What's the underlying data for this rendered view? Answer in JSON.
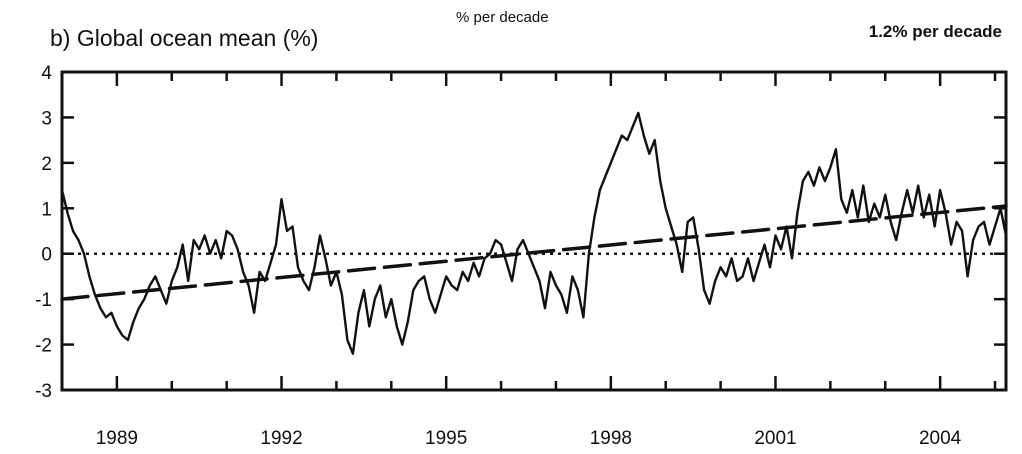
{
  "chart_data": {
    "type": "line",
    "title": "b) Global ocean mean (%)",
    "subtitle": "% per decade",
    "annotation": "1.2% per decade",
    "xlabel": "",
    "ylabel": "",
    "xlim": [
      1988,
      2005.2
    ],
    "ylim": [
      -3,
      4
    ],
    "x_ticks": [
      1989,
      1992,
      1995,
      1998,
      2001,
      2004
    ],
    "x_tick_labels": [
      "1989",
      "1992",
      "1995",
      "1998",
      "2001",
      "2004"
    ],
    "y_ticks": [
      -3,
      -2,
      -1,
      0,
      1,
      2,
      3,
      4
    ],
    "y_tick_labels": [
      "-3",
      "-2",
      "-1",
      "0",
      "1",
      "2",
      "3",
      "4"
    ],
    "grid": false,
    "zero_line": "dotted",
    "series": [
      {
        "style": "solid",
        "color": "#111111",
        "points": [
          [
            1988.0,
            1.4
          ],
          [
            1988.1,
            0.9
          ],
          [
            1988.2,
            0.5
          ],
          [
            1988.3,
            0.3
          ],
          [
            1988.4,
            0.0
          ],
          [
            1988.5,
            -0.5
          ],
          [
            1988.6,
            -0.9
          ],
          [
            1988.7,
            -1.2
          ],
          [
            1988.8,
            -1.4
          ],
          [
            1988.9,
            -1.3
          ],
          [
            1989.0,
            -1.6
          ],
          [
            1989.1,
            -1.8
          ],
          [
            1989.2,
            -1.9
          ],
          [
            1989.3,
            -1.5
          ],
          [
            1989.4,
            -1.2
          ],
          [
            1989.5,
            -1.0
          ],
          [
            1989.6,
            -0.7
          ],
          [
            1989.7,
            -0.5
          ],
          [
            1989.8,
            -0.8
          ],
          [
            1989.9,
            -1.1
          ],
          [
            1990.0,
            -0.6
          ],
          [
            1990.1,
            -0.3
          ],
          [
            1990.2,
            0.2
          ],
          [
            1990.3,
            -0.6
          ],
          [
            1990.4,
            0.3
          ],
          [
            1990.5,
            0.1
          ],
          [
            1990.6,
            0.4
          ],
          [
            1990.7,
            0.0
          ],
          [
            1990.8,
            0.3
          ],
          [
            1990.9,
            -0.1
          ],
          [
            1991.0,
            0.5
          ],
          [
            1991.1,
            0.4
          ],
          [
            1991.2,
            0.1
          ],
          [
            1991.3,
            -0.4
          ],
          [
            1991.4,
            -0.7
          ],
          [
            1991.5,
            -1.3
          ],
          [
            1991.6,
            -0.4
          ],
          [
            1991.7,
            -0.6
          ],
          [
            1991.8,
            -0.2
          ],
          [
            1991.9,
            0.2
          ],
          [
            1992.0,
            1.2
          ],
          [
            1992.1,
            0.5
          ],
          [
            1992.2,
            0.6
          ],
          [
            1992.3,
            -0.3
          ],
          [
            1992.4,
            -0.6
          ],
          [
            1992.5,
            -0.8
          ],
          [
            1992.6,
            -0.3
          ],
          [
            1992.7,
            0.4
          ],
          [
            1992.8,
            -0.1
          ],
          [
            1992.9,
            -0.7
          ],
          [
            1993.0,
            -0.4
          ],
          [
            1993.1,
            -0.9
          ],
          [
            1993.2,
            -1.9
          ],
          [
            1993.3,
            -2.2
          ],
          [
            1993.4,
            -1.3
          ],
          [
            1993.5,
            -0.8
          ],
          [
            1993.6,
            -1.6
          ],
          [
            1993.7,
            -1.0
          ],
          [
            1993.8,
            -0.7
          ],
          [
            1993.9,
            -1.4
          ],
          [
            1994.0,
            -1.0
          ],
          [
            1994.1,
            -1.6
          ],
          [
            1994.2,
            -2.0
          ],
          [
            1994.3,
            -1.5
          ],
          [
            1994.4,
            -0.8
          ],
          [
            1994.5,
            -0.6
          ],
          [
            1994.6,
            -0.5
          ],
          [
            1994.7,
            -1.0
          ],
          [
            1994.8,
            -1.3
          ],
          [
            1994.9,
            -0.9
          ],
          [
            1995.0,
            -0.5
          ],
          [
            1995.1,
            -0.7
          ],
          [
            1995.2,
            -0.8
          ],
          [
            1995.3,
            -0.4
          ],
          [
            1995.4,
            -0.6
          ],
          [
            1995.5,
            -0.2
          ],
          [
            1995.6,
            -0.5
          ],
          [
            1995.7,
            -0.1
          ],
          [
            1995.8,
            0.0
          ],
          [
            1995.9,
            0.3
          ],
          [
            1996.0,
            0.2
          ],
          [
            1996.1,
            -0.2
          ],
          [
            1996.2,
            -0.6
          ],
          [
            1996.3,
            0.1
          ],
          [
            1996.4,
            0.3
          ],
          [
            1996.5,
            0.0
          ],
          [
            1996.6,
            -0.3
          ],
          [
            1996.7,
            -0.6
          ],
          [
            1996.8,
            -1.2
          ],
          [
            1996.9,
            -0.4
          ],
          [
            1997.0,
            -0.7
          ],
          [
            1997.1,
            -0.9
          ],
          [
            1997.2,
            -1.3
          ],
          [
            1997.3,
            -0.5
          ],
          [
            1997.4,
            -0.8
          ],
          [
            1997.5,
            -1.4
          ],
          [
            1997.6,
            0.0
          ],
          [
            1997.7,
            0.8
          ],
          [
            1997.8,
            1.4
          ],
          [
            1997.9,
            1.7
          ],
          [
            1998.0,
            2.0
          ],
          [
            1998.1,
            2.3
          ],
          [
            1998.2,
            2.6
          ],
          [
            1998.3,
            2.5
          ],
          [
            1998.4,
            2.8
          ],
          [
            1998.5,
            3.1
          ],
          [
            1998.6,
            2.6
          ],
          [
            1998.7,
            2.2
          ],
          [
            1998.8,
            2.5
          ],
          [
            1998.9,
            1.6
          ],
          [
            1999.0,
            1.0
          ],
          [
            1999.1,
            0.6
          ],
          [
            1999.2,
            0.2
          ],
          [
            1999.3,
            -0.4
          ],
          [
            1999.4,
            0.7
          ],
          [
            1999.5,
            0.8
          ],
          [
            1999.6,
            0.1
          ],
          [
            1999.7,
            -0.8
          ],
          [
            1999.8,
            -1.1
          ],
          [
            1999.9,
            -0.6
          ],
          [
            2000.0,
            -0.3
          ],
          [
            2000.1,
            -0.5
          ],
          [
            2000.2,
            -0.1
          ],
          [
            2000.3,
            -0.6
          ],
          [
            2000.4,
            -0.5
          ],
          [
            2000.5,
            -0.1
          ],
          [
            2000.6,
            -0.6
          ],
          [
            2000.7,
            -0.2
          ],
          [
            2000.8,
            0.2
          ],
          [
            2000.9,
            -0.3
          ],
          [
            2001.0,
            0.4
          ],
          [
            2001.1,
            0.1
          ],
          [
            2001.2,
            0.6
          ],
          [
            2001.3,
            -0.1
          ],
          [
            2001.4,
            0.9
          ],
          [
            2001.5,
            1.6
          ],
          [
            2001.6,
            1.8
          ],
          [
            2001.7,
            1.5
          ],
          [
            2001.8,
            1.9
          ],
          [
            2001.9,
            1.6
          ],
          [
            2002.0,
            1.9
          ],
          [
            2002.1,
            2.3
          ],
          [
            2002.2,
            1.2
          ],
          [
            2002.3,
            0.9
          ],
          [
            2002.4,
            1.4
          ],
          [
            2002.5,
            0.8
          ],
          [
            2002.6,
            1.5
          ],
          [
            2002.7,
            0.7
          ],
          [
            2002.8,
            1.1
          ],
          [
            2002.9,
            0.8
          ],
          [
            2003.0,
            1.3
          ],
          [
            2003.1,
            0.7
          ],
          [
            2003.2,
            0.3
          ],
          [
            2003.3,
            0.9
          ],
          [
            2003.4,
            1.4
          ],
          [
            2003.5,
            0.9
          ],
          [
            2003.6,
            1.5
          ],
          [
            2003.7,
            0.8
          ],
          [
            2003.8,
            1.3
          ],
          [
            2003.9,
            0.6
          ],
          [
            2004.0,
            1.4
          ],
          [
            2004.1,
            0.9
          ],
          [
            2004.2,
            0.2
          ],
          [
            2004.3,
            0.7
          ],
          [
            2004.4,
            0.5
          ],
          [
            2004.5,
            -0.5
          ],
          [
            2004.6,
            0.3
          ],
          [
            2004.7,
            0.6
          ],
          [
            2004.8,
            0.7
          ],
          [
            2004.9,
            0.2
          ],
          [
            2005.0,
            0.6
          ],
          [
            2005.1,
            1.0
          ],
          [
            2005.2,
            0.4
          ]
        ]
      },
      {
        "style": "dashed",
        "color": "#111111",
        "points": [
          [
            1988.0,
            -1.0
          ],
          [
            2005.2,
            1.05
          ]
        ]
      }
    ]
  }
}
